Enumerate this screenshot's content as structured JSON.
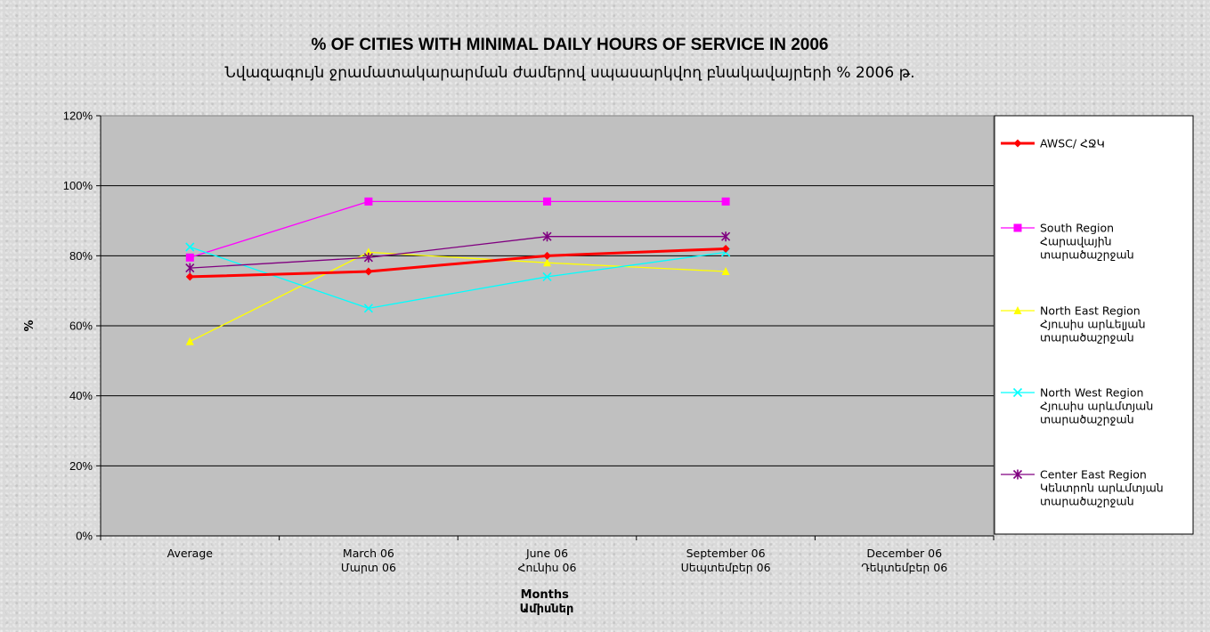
{
  "chart_data": {
    "type": "line",
    "title": "% OF CITIES WITH MINIMAL DAILY HOURS OF SERVICE IN 2006",
    "subtitle": "Նվազագույն ջրամատակարարման ժամերով սպասարկվող բնակավայրերի %  2006 թ.",
    "ylabel": "%",
    "xlabel": [
      "Months",
      "Ամիսներ"
    ],
    "ylim": [
      0,
      120
    ],
    "y_ticks": [
      "0%",
      "20%",
      "40%",
      "60%",
      "80%",
      "100%",
      "120%"
    ],
    "grid": "horizontal",
    "legend_position": "right",
    "categories": [
      [
        "Average"
      ],
      [
        "March 06",
        "Մարտ 06"
      ],
      [
        "June 06",
        "Հունիս 06"
      ],
      [
        "September 06",
        "Սեպտեմբեր 06"
      ],
      [
        "December 06",
        "Դեկտեմբեր 06"
      ]
    ],
    "series": [
      {
        "name": [
          "South Region",
          "Հարավային",
          "տարածաշրջան"
        ],
        "color": "#ff00ff",
        "marker": "square",
        "width": 1.3,
        "values": [
          79.5,
          95.5,
          95.5,
          95.5,
          null
        ]
      },
      {
        "name": [
          "North East Region",
          "Հյուսիս արևելյան",
          "տարածաշրջան"
        ],
        "color": "#ffff00",
        "marker": "triangle",
        "width": 1.3,
        "values": [
          55.5,
          81,
          78,
          75.5,
          null
        ]
      },
      {
        "name": [
          "North West Region",
          "Հյուսիս արևմտյան",
          "տարածաշրջան"
        ],
        "color": "#00ffff",
        "marker": "x",
        "width": 1.3,
        "values": [
          82.5,
          65,
          74,
          81,
          null
        ]
      },
      {
        "name": [
          "Center East Region",
          "Կենտրոն արևմտյան",
          "տարածաշրջան"
        ],
        "color": "#800080",
        "marker": "star",
        "width": 1.3,
        "values": [
          76.5,
          79.5,
          85.5,
          85.5,
          null
        ]
      },
      {
        "name": [
          "AWSC/ ՀՋԿ"
        ],
        "color": "#ff0000",
        "marker": "diamond",
        "width": 3,
        "values": [
          74,
          75.5,
          80,
          82,
          null
        ]
      }
    ],
    "legend_order": [
      4,
      0,
      1,
      2,
      3
    ],
    "plot_background": "#c0c0c0"
  }
}
